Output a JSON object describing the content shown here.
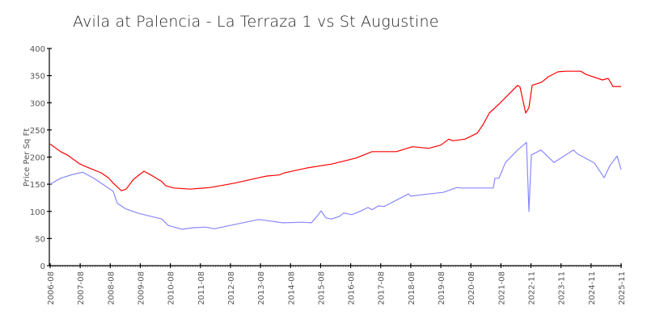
{
  "chart_data": {
    "type": "line",
    "title": "Avila at Palencia - La Terraza 1 vs St Augustine",
    "xlabel": "",
    "ylabel": "Price Per Sq Ft",
    "ylim": [
      0,
      400
    ],
    "yticks": [
      0,
      50,
      100,
      150,
      200,
      250,
      300,
      350,
      400
    ],
    "xticks": [
      "2006-08",
      "2007-08",
      "2008-08",
      "2009-08",
      "2010-08",
      "2011-08",
      "2012-08",
      "2013-08",
      "2014-08",
      "2015-08",
      "2016-08",
      "2017-08",
      "2018-08",
      "2019-08",
      "2020-08",
      "2021-08",
      "2022-11",
      "2023-11",
      "2024-11",
      "2025-11"
    ],
    "grid": false,
    "legend": "none",
    "series": [
      {
        "name": "Avila at Palencia - La Terraza 1",
        "color": "#ff0000",
        "points": [
          [
            62,
            224
          ],
          [
            75,
            210
          ],
          [
            83,
            204
          ],
          [
            99,
            187
          ],
          [
            110,
            180
          ],
          [
            125,
            171
          ],
          [
            134,
            162
          ],
          [
            140,
            152
          ],
          [
            150,
            138
          ],
          [
            156,
            141
          ],
          [
            165,
            159
          ],
          [
            178,
            174
          ],
          [
            190,
            164
          ],
          [
            200,
            155
          ],
          [
            205,
            147
          ],
          [
            215,
            143
          ],
          [
            235,
            141
          ],
          [
            260,
            144
          ],
          [
            290,
            152
          ],
          [
            320,
            162
          ],
          [
            330,
            165
          ],
          [
            345,
            167
          ],
          [
            352,
            171
          ],
          [
            358,
            173
          ],
          [
            380,
            180
          ],
          [
            410,
            187
          ],
          [
            440,
            198
          ],
          [
            460,
            210
          ],
          [
            490,
            210
          ],
          [
            510,
            219
          ],
          [
            530,
            216
          ],
          [
            545,
            222
          ],
          [
            555,
            233
          ],
          [
            560,
            230
          ],
          [
            575,
            233
          ],
          [
            590,
            244
          ],
          [
            597,
            259
          ],
          [
            605,
            281
          ],
          [
            618,
            299
          ],
          [
            630,
            317
          ],
          [
            640,
            332
          ],
          [
            643,
            329
          ],
          [
            650,
            281
          ],
          [
            654,
            291
          ],
          [
            658,
            332
          ],
          [
            670,
            338
          ],
          [
            678,
            348
          ],
          [
            690,
            357
          ],
          [
            700,
            358
          ],
          [
            718,
            358
          ],
          [
            725,
            352
          ],
          [
            745,
            342
          ],
          [
            752,
            345
          ],
          [
            758,
            330
          ],
          [
            768,
            330
          ]
        ]
      },
      {
        "name": "St Augustine",
        "color": "#8888ff",
        "points": [
          [
            62,
            150
          ],
          [
            75,
            161
          ],
          [
            90,
            168
          ],
          [
            102,
            172
          ],
          [
            115,
            162
          ],
          [
            130,
            147
          ],
          [
            140,
            137
          ],
          [
            145,
            115
          ],
          [
            155,
            105
          ],
          [
            170,
            97
          ],
          [
            200,
            86
          ],
          [
            208,
            74
          ],
          [
            225,
            67
          ],
          [
            240,
            70
          ],
          [
            255,
            71
          ],
          [
            265,
            68
          ],
          [
            300,
            79
          ],
          [
            320,
            85
          ],
          [
            350,
            79
          ],
          [
            375,
            80
          ],
          [
            385,
            79
          ],
          [
            392,
            91
          ],
          [
            397,
            101
          ],
          [
            403,
            88
          ],
          [
            410,
            86
          ],
          [
            420,
            91
          ],
          [
            425,
            97
          ],
          [
            435,
            94
          ],
          [
            445,
            100
          ],
          [
            455,
            107
          ],
          [
            460,
            103
          ],
          [
            468,
            110
          ],
          [
            475,
            109
          ],
          [
            505,
            132
          ],
          [
            508,
            128
          ],
          [
            530,
            132
          ],
          [
            548,
            135
          ],
          [
            565,
            144
          ],
          [
            570,
            143
          ],
          [
            610,
            143
          ],
          [
            612,
            161
          ],
          [
            617,
            161
          ],
          [
            625,
            190
          ],
          [
            640,
            213
          ],
          [
            651,
            227
          ],
          [
            654,
            100
          ],
          [
            657,
            204
          ],
          [
            669,
            213
          ],
          [
            685,
            190
          ],
          [
            709,
            213
          ],
          [
            714,
            206
          ],
          [
            735,
            189
          ],
          [
            747,
            162
          ],
          [
            754,
            184
          ],
          [
            763,
            202
          ],
          [
            768,
            177
          ]
        ]
      }
    ]
  },
  "title": "Avila at Palencia - La Terraza 1 vs St Augustine",
  "axis": {
    "y_title": "Price Per Sq Ft"
  }
}
